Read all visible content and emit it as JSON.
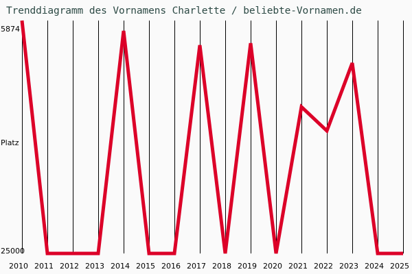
{
  "title": "Trenddiagramm des Vornamens Charlette / beliebte-Vornamen.de",
  "colors": {
    "background": "#fafafa",
    "title": "#2d4a45",
    "line": "#dc0028",
    "grid": "#000000"
  },
  "chart_data": {
    "type": "line",
    "title": "Trenddiagramm des Vornamens Charlette / beliebte-Vornamen.de",
    "xlabel": "",
    "ylabel": "Platz",
    "y_axis_inverted": true,
    "y_tick_labels": [
      "5874",
      "25000"
    ],
    "ylim": [
      5874,
      25000
    ],
    "grid": "vertical lines at each year",
    "legend": "none",
    "categories": [
      "2010",
      "2011",
      "2012",
      "2013",
      "2014",
      "2015",
      "2016",
      "2017",
      "2018",
      "2019",
      "2020",
      "2021",
      "2022",
      "2023",
      "2024",
      "2025"
    ],
    "series": [
      {
        "name": "Charlette",
        "values": [
          5874,
          25000,
          25000,
          25000,
          6050,
          25000,
          25000,
          7270,
          25000,
          7100,
          25000,
          12520,
          14560,
          8790,
          25000,
          25000
        ]
      }
    ]
  },
  "axis": {
    "y_top_label": "5874",
    "y_mid_label": "Platz",
    "y_bottom_label": "25000"
  }
}
